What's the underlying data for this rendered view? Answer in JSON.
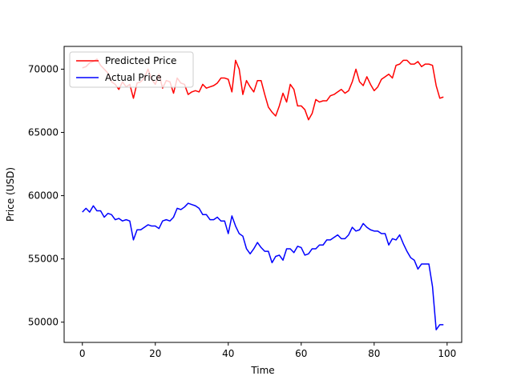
{
  "chart_data": {
    "type": "line",
    "title": "",
    "xlabel": "Time",
    "ylabel": "Price (USD)",
    "xlim": [
      -5,
      104
    ],
    "ylim": [
      48400,
      71800
    ],
    "xticks": [
      0,
      20,
      40,
      60,
      80,
      100
    ],
    "yticks": [
      50000,
      55000,
      60000,
      65000,
      70000
    ],
    "grid": false,
    "legend_position": "top-left",
    "colors": {
      "predicted": "#ff0000",
      "actual": "#0000ff"
    },
    "x": [
      0,
      1,
      2,
      3,
      4,
      5,
      6,
      7,
      8,
      9,
      10,
      11,
      12,
      13,
      14,
      15,
      16,
      17,
      18,
      19,
      20,
      21,
      22,
      23,
      24,
      25,
      26,
      27,
      28,
      29,
      30,
      31,
      32,
      33,
      34,
      35,
      36,
      37,
      38,
      39,
      40,
      41,
      42,
      43,
      44,
      45,
      46,
      47,
      48,
      49,
      50,
      51,
      52,
      53,
      54,
      55,
      56,
      57,
      58,
      59,
      60,
      61,
      62,
      63,
      64,
      65,
      66,
      67,
      68,
      69,
      70,
      71,
      72,
      73,
      74,
      75,
      76,
      77,
      78,
      79,
      80,
      81,
      82,
      83,
      84,
      85,
      86,
      87,
      88,
      89,
      90,
      91,
      92,
      93,
      94,
      95,
      96,
      97,
      98,
      99
    ],
    "series": [
      {
        "name": "Predicted Price",
        "color": "#ff0000",
        "values": [
          70100,
          70200,
          70500,
          70600,
          70800,
          70300,
          70000,
          69700,
          69000,
          68800,
          68400,
          69000,
          68600,
          68800,
          67700,
          68900,
          69000,
          69300,
          70000,
          69200,
          68800,
          69600,
          68500,
          69100,
          69000,
          68100,
          69300,
          68900,
          68800,
          68000,
          68200,
          68300,
          68200,
          68800,
          68500,
          68600,
          68700,
          68900,
          69300,
          69300,
          69200,
          68200,
          70700,
          70000,
          68000,
          69100,
          68600,
          68200,
          69100,
          69100,
          68000,
          67000,
          66600,
          66300,
          67100,
          68100,
          67400,
          68800,
          68400,
          67100,
          67100,
          66800,
          66000,
          66500,
          67600,
          67400,
          67500,
          67500,
          67900,
          68000,
          68200,
          68400,
          68100,
          68300,
          69000,
          70000,
          69000,
          68700,
          69400,
          68800,
          68300,
          68600,
          69200,
          69400,
          69600,
          69300,
          70300,
          70400,
          70700,
          70700,
          70400,
          70400,
          70600,
          70200,
          70400,
          70400,
          70300,
          68700,
          67700,
          67800
        ]
      },
      {
        "name": "Actual Price",
        "color": "#0000ff",
        "values": [
          58700,
          59000,
          58700,
          59200,
          58800,
          58800,
          58300,
          58600,
          58500,
          58100,
          58200,
          58000,
          58100,
          58000,
          56500,
          57300,
          57300,
          57500,
          57700,
          57600,
          57600,
          57400,
          58000,
          58100,
          58000,
          58300,
          59000,
          58900,
          59100,
          59400,
          59300,
          59200,
          59000,
          58500,
          58500,
          58100,
          58100,
          58300,
          58000,
          58000,
          57000,
          58400,
          57600,
          57000,
          56800,
          55800,
          55400,
          55800,
          56300,
          55900,
          55600,
          55600,
          54700,
          55200,
          55300,
          54900,
          55800,
          55800,
          55500,
          56000,
          55900,
          55300,
          55400,
          55800,
          55800,
          56100,
          56100,
          56500,
          56500,
          56700,
          56900,
          56600,
          56600,
          56900,
          57500,
          57200,
          57300,
          57800,
          57500,
          57300,
          57200,
          57200,
          57000,
          57000,
          56100,
          56600,
          56500,
          56900,
          56200,
          55600,
          55100,
          54900,
          54200,
          54600,
          54600,
          54600,
          52800,
          49400,
          49800,
          49800
        ]
      }
    ]
  }
}
